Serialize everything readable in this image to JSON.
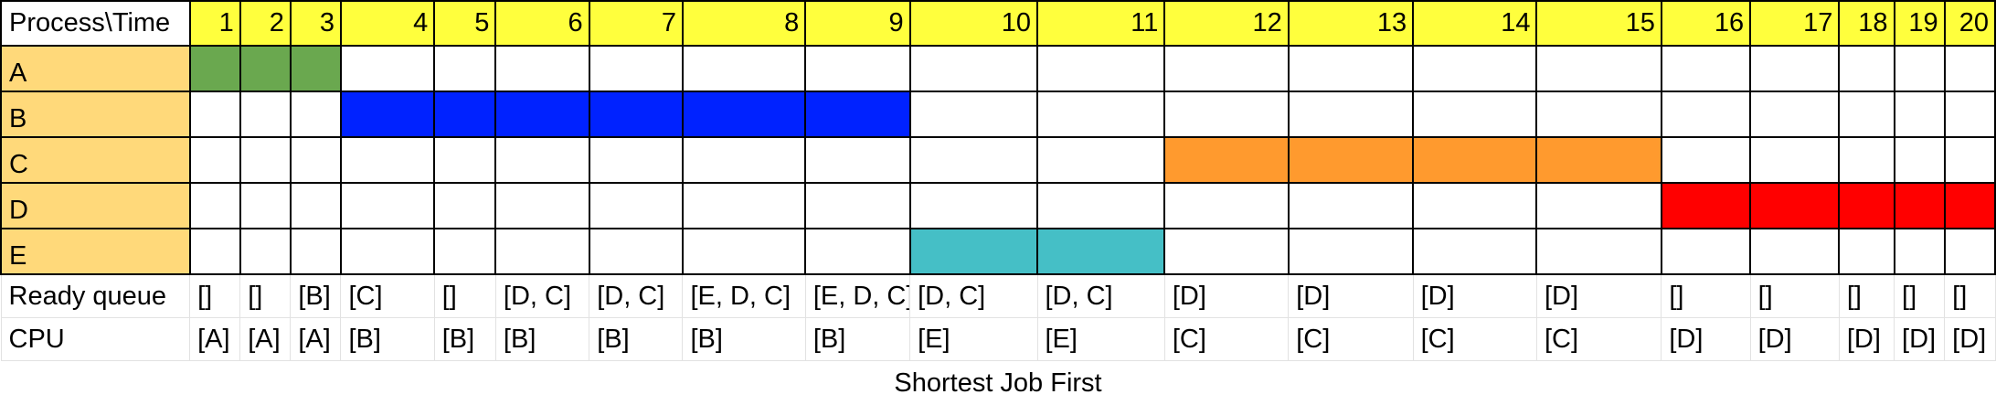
{
  "chart_data": {
    "type": "table",
    "title": "Shortest Job First",
    "header_label": "Process\\Time",
    "time_ticks": [
      "1",
      "2",
      "3",
      "4",
      "5",
      "6",
      "7",
      "8",
      "9",
      "10",
      "11",
      "12",
      "13",
      "14",
      "15",
      "16",
      "17",
      "18",
      "19",
      "20"
    ],
    "processes": [
      {
        "name": "A",
        "color": "#6aa84f",
        "start": 1,
        "end": 3
      },
      {
        "name": "B",
        "color": "#0022ff",
        "start": 4,
        "end": 9
      },
      {
        "name": "C",
        "color": "#ff9a2e",
        "start": 12,
        "end": 15
      },
      {
        "name": "D",
        "color": "#ff0000",
        "start": 16,
        "end": 20
      },
      {
        "name": "E",
        "color": "#45bfc6",
        "start": 10,
        "end": 11
      }
    ],
    "ready_queue_label": "Ready queue",
    "ready_queue": [
      "[]",
      "[]",
      "[B]",
      "[C]",
      "[]",
      "[D, C]",
      "[D, C]",
      "[E, D, C]",
      "[E, D, C]",
      "[D, C]",
      "[D, C]",
      "[D]",
      "[D]",
      "[D]",
      "[D]",
      "[]",
      "[]",
      "[]",
      "[]",
      "[]"
    ],
    "cpu_label": "CPU",
    "cpu": [
      "[A]",
      "[A]",
      "[A]",
      "[B]",
      "[B]",
      "[B]",
      "[B]",
      "[B]",
      "[B]",
      "[E]",
      "[E]",
      "[C]",
      "[C]",
      "[C]",
      "[C]",
      "[D]",
      "[D]",
      "[D]",
      "[D]",
      "[D]"
    ],
    "colors": {
      "header_fill": "#ffff3d",
      "label_fill": "#ffd97a"
    }
  }
}
